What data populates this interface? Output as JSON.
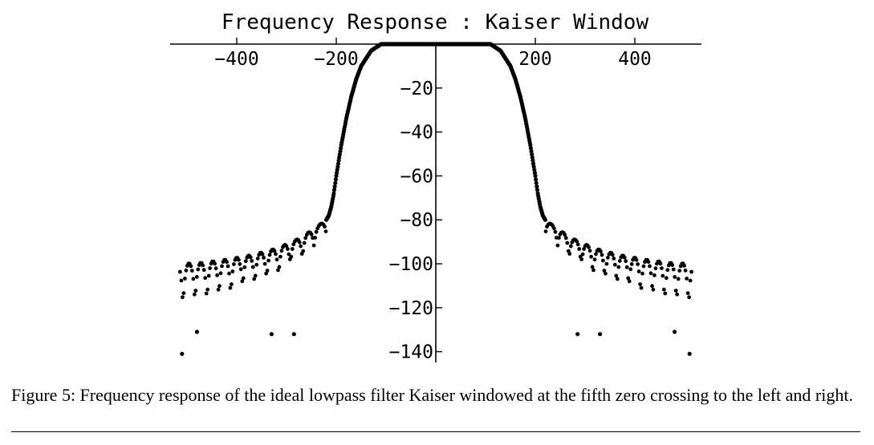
{
  "chart_data": {
    "type": "scatter",
    "title": "Frequency Response : Kaiser Window",
    "xlabel": "",
    "ylabel": "",
    "xlim": [
      -535,
      535
    ],
    "ylim": [
      -145,
      0
    ],
    "x_ticks": [
      -400,
      -200,
      200,
      400
    ],
    "x_tick_labels": [
      "-400",
      "-200",
      "200",
      "400"
    ],
    "y_ticks": [
      -20,
      -40,
      -60,
      -80,
      -100,
      -120,
      -140
    ],
    "y_tick_labels": [
      "-20",
      "-40",
      "-60",
      "-80",
      "-100",
      "-120",
      "-140"
    ],
    "grid": false,
    "legend": "none",
    "marker_color": "#000000",
    "series": [
      {
        "passband": {
          "x": [
            -110,
            110
          ],
          "y": 0
        },
        "transition_right": {
          "x": [
            110,
            130,
            150,
            160,
            170,
            180,
            190,
            200,
            205,
            210,
            215,
            220
          ],
          "y": [
            0,
            -3,
            -10,
            -16,
            -24,
            -34,
            -46,
            -60,
            -68,
            -74,
            -78,
            -80
          ]
        },
        "stopband_envelope": {
          "x": [
            220,
            270,
            320,
            370,
            420,
            470,
            515
          ],
          "y": [
            -80,
            -88,
            -93,
            -96,
            -98,
            -99.5,
            -100
          ]
        },
        "stopband_lobe_depth": [
          10,
          15,
          20,
          22,
          26,
          28,
          30
        ],
        "deep_nulls": {
          "x": [
            -510,
            -480,
            -330,
            -285,
            285,
            330,
            480,
            510
          ],
          "y": [
            -141,
            -131,
            -132,
            -132,
            -132,
            -132,
            -131,
            -141
          ]
        }
      }
    ]
  },
  "caption": {
    "text": "Figure 5: Frequency response of the ideal lowpass filter Kaiser windowed at the fifth zero crossing to the left and right."
  }
}
